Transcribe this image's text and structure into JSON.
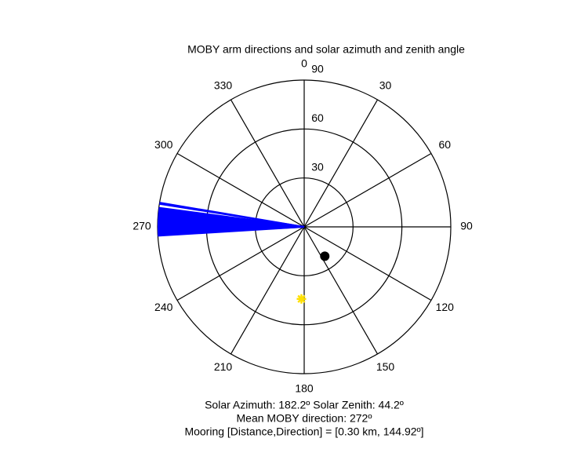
{
  "chart_data": {
    "type": "polar",
    "title": "MOBY arm directions and solar azimuth and zenith angle",
    "rlim": [
      0,
      90
    ],
    "rticks": [
      30,
      60,
      90
    ],
    "thetaticks": [
      0,
      30,
      60,
      90,
      120,
      150,
      180,
      210,
      240,
      270,
      300,
      330
    ],
    "arm_directions": {
      "color": "#0000ff",
      "values": [
        266.5,
        267,
        267.5,
        268,
        268.5,
        269,
        269.5,
        270,
        270.5,
        271,
        271.5,
        272,
        272.5,
        273,
        273.5,
        274,
        274.5,
        275,
        275.5,
        276,
        276.5,
        277,
        277.5,
        279,
        279.5
      ]
    },
    "sun": {
      "color": "#ffe000",
      "theta": 182.2,
      "r": 44.2
    },
    "mooring": {
      "color": "#000000",
      "theta": 144.92,
      "r": 22
    },
    "annotations": [
      "Solar Azimuth: 182.2º    Solar Zenith: 44.2º",
      "Mean MOBY direction: 272º",
      "Mooring [Distance,Direction] = [0.30 km, 144.92º]"
    ]
  }
}
